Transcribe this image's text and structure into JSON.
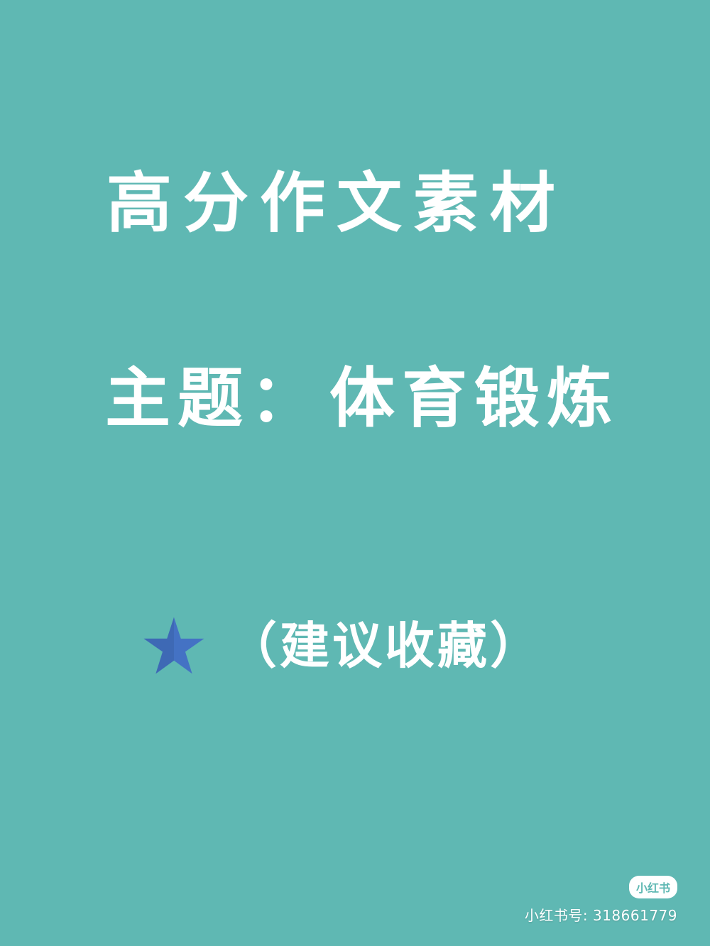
{
  "background_color": "#5fb8b3",
  "title": "高分作文素材",
  "topic": {
    "label": "主题：",
    "value": "体育锻炼"
  },
  "suggestion": {
    "icon": "star-icon",
    "icon_color": "#4472c4",
    "text": "（建议收藏）"
  },
  "watermark": {
    "logo_text": "小红书",
    "id_text": "小红书号: 318661779"
  }
}
